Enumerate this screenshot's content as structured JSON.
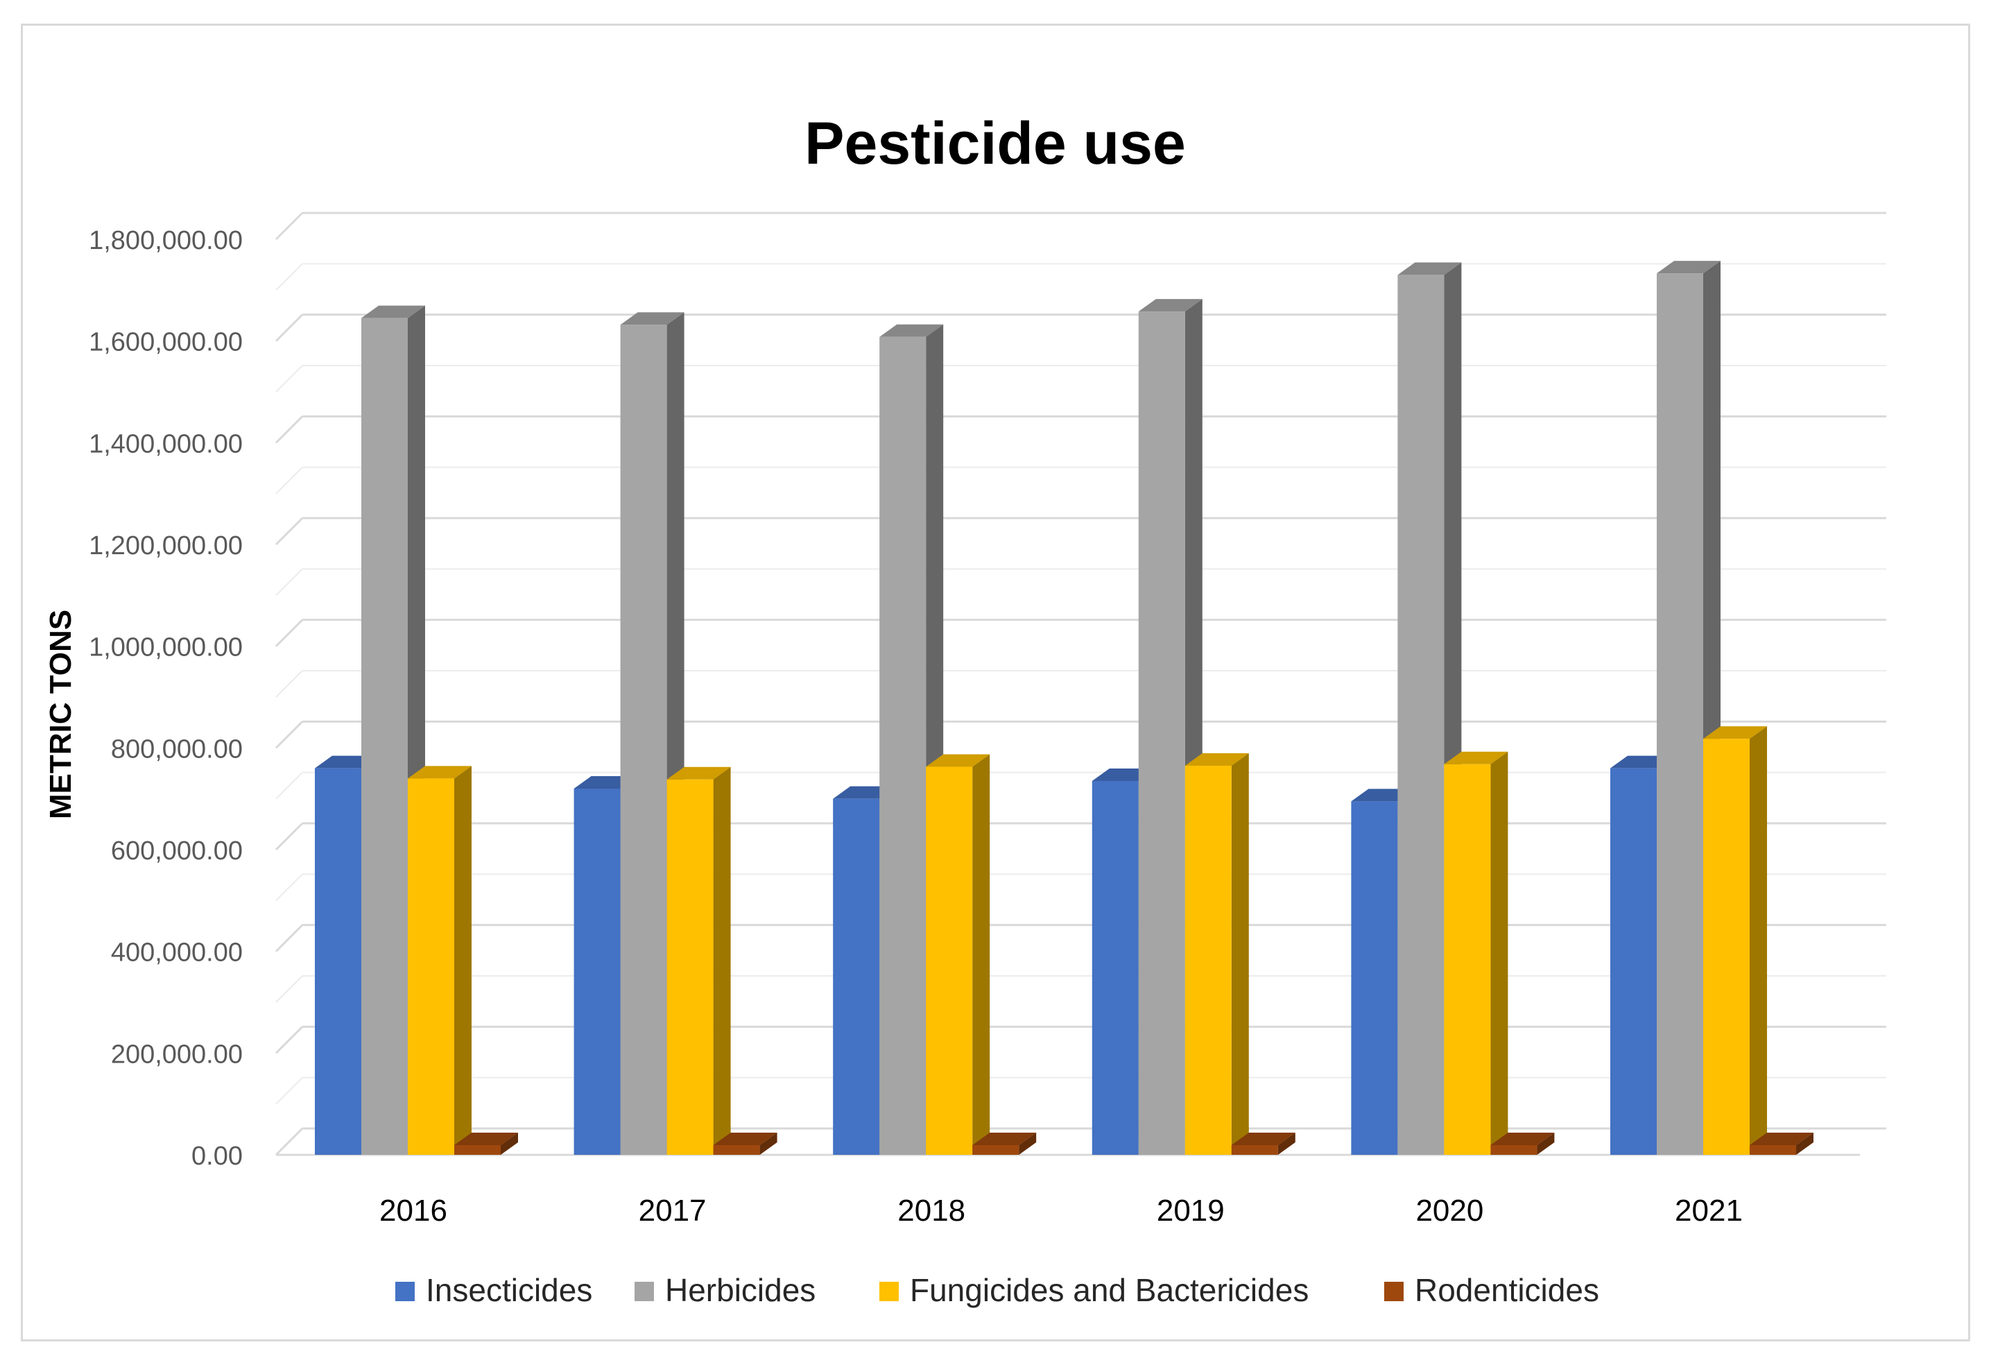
{
  "chart_data": {
    "type": "bar",
    "title": "Pesticide use",
    "xlabel": "",
    "ylabel": "METRIC TONS",
    "ylim": [
      0,
      1800000
    ],
    "yticks": [
      "0.00",
      "200,000.00",
      "400,000.00",
      "600,000.00",
      "800,000.00",
      "1,000,000.00",
      "1,200,000.00",
      "1,400,000.00",
      "1,600,000.00",
      "1,800,000.00"
    ],
    "ytick_values": [
      0,
      200000,
      400000,
      600000,
      800000,
      1000000,
      1200000,
      1400000,
      1600000,
      1800000
    ],
    "categories": [
      "2016",
      "2017",
      "2018",
      "2019",
      "2020",
      "2021"
    ],
    "legend_position": "bottom",
    "grid": true,
    "series": [
      {
        "name": "Insecticides",
        "color": "#4472C4",
        "values": [
          760000,
          720000,
          700000,
          735000,
          695000,
          760000
        ]
      },
      {
        "name": "Herbicides",
        "color": "#A5A5A5",
        "values": [
          1645000,
          1632000,
          1608000,
          1658000,
          1730000,
          1733000
        ]
      },
      {
        "name": "Fungicides and Bactericides",
        "color": "#FFC000",
        "values": [
          740000,
          738000,
          763000,
          765000,
          768000,
          818000
        ]
      },
      {
        "name": "Rodenticides",
        "color": "#9E480E",
        "values": [
          2000,
          2000,
          2000,
          2000,
          2000,
          2000
        ]
      }
    ]
  }
}
